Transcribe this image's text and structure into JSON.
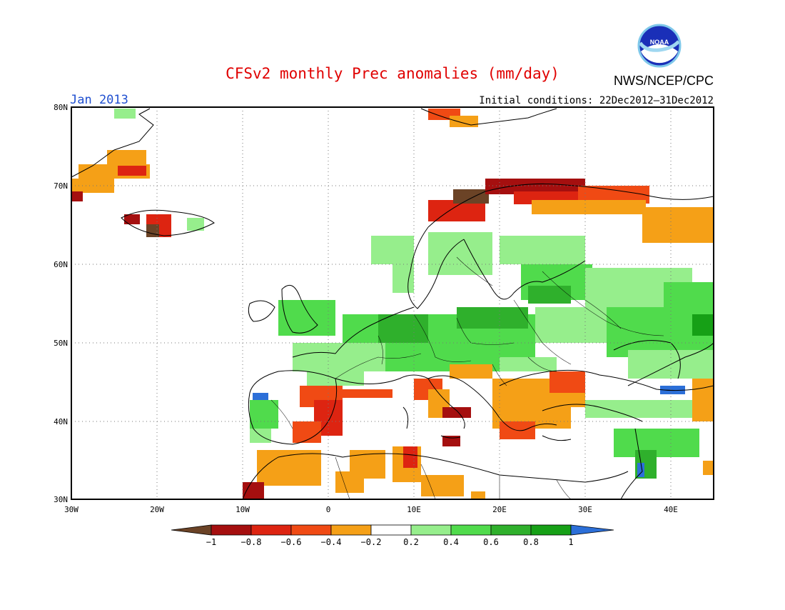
{
  "header": {
    "title": "CFSv2 monthly Prec anomalies (mm/day)",
    "period": "Jan 2013",
    "initial_conditions": "Initial conditions: 22Dec2012–31Dec2012",
    "agency": "NWS/NCEP/CPC",
    "logo_text": "NOAA"
  },
  "axes": {
    "lon_labels": [
      "30W",
      "20W",
      "10W",
      "0",
      "10E",
      "20E",
      "30E",
      "40E"
    ],
    "lat_labels": [
      "80N",
      "70N",
      "60N",
      "50N",
      "40N",
      "30N"
    ],
    "lon_range": [
      -30,
      45
    ],
    "lat_range": [
      30,
      80
    ],
    "grid": "dotted"
  },
  "colorbar": {
    "labels": [
      "−1",
      "−0.8",
      "−0.6",
      "−0.4",
      "−0.2",
      "0.2",
      "0.4",
      "0.6",
      "0.8",
      "1"
    ],
    "colors": [
      "#6b4326",
      "#a50f0f",
      "#dd2411",
      "#f04a14",
      "#f5a017",
      "#ffffff",
      "#96ee8c",
      "#50db4c",
      "#2fb02c",
      "#16a016",
      "#2c6fd8"
    ]
  },
  "colors": {
    "title": "#e00000",
    "period": "#1f4fd0",
    "text": "#000000"
  }
}
